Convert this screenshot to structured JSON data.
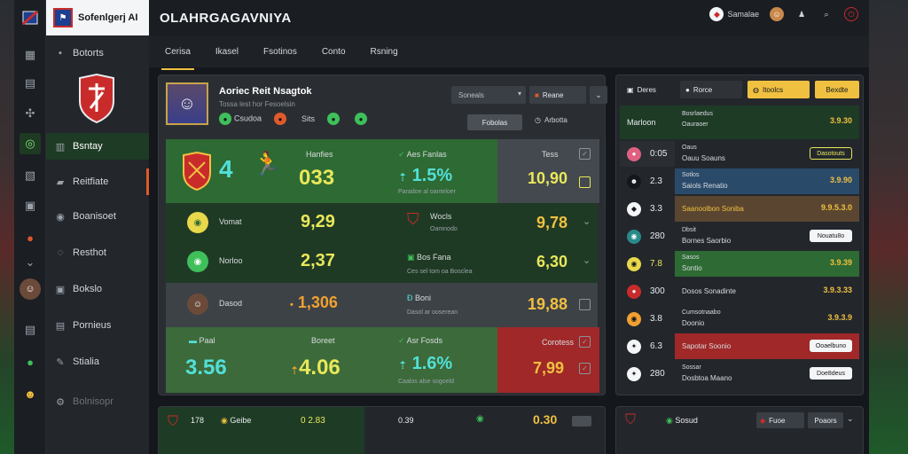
{
  "app": {
    "brand": "Sofenlgerj AI",
    "title": "OLAHRGAGAVNIYA"
  },
  "header": {
    "chip1": "Samalae",
    "chip2": "",
    "chip3": "",
    "chip4": ""
  },
  "tabs": [
    {
      "label": "Cerisa",
      "active": true
    },
    {
      "label": "Ikasel",
      "active": false
    },
    {
      "label": "Fsotinos",
      "active": false
    },
    {
      "label": "Conto",
      "active": false
    },
    {
      "label": "Rsning",
      "active": false
    }
  ],
  "sidebar": {
    "items": [
      {
        "label": "Botorts",
        "icon": "home-icon"
      },
      {
        "label": "Bsntay",
        "icon": "chart-icon",
        "active": true
      },
      {
        "label": "Reitfiate",
        "icon": "folder-icon",
        "marked": true
      },
      {
        "label": "Boanisoet",
        "icon": "shield-icon"
      },
      {
        "label": "Resthot",
        "icon": "globe-icon"
      },
      {
        "label": "Bokslo",
        "icon": "camera-icon"
      },
      {
        "label": "Pornieus",
        "icon": "doc-icon"
      },
      {
        "label": "Stialia",
        "icon": "tools-icon"
      },
      {
        "label": "Bolnisopr",
        "icon": "settings-icon",
        "dim": true
      }
    ]
  },
  "player": {
    "name": "Aoriec Reit Nsagtok",
    "sub": "Tossa lest hor  Fesoelsin",
    "stat1": "Csudoa",
    "stat2": "Sits",
    "select": "Soneals",
    "button": "Reane",
    "tag": "Fobolas",
    "tag2": "Arbotta"
  },
  "rows": {
    "r1": {
      "label_a": "Hanfies",
      "number": "4",
      "value_a": "033",
      "label_b": "Aes Fanlas",
      "value_b": "1.5%",
      "sub_b": "Paradoe al oanteloer",
      "label_c": "Tess",
      "value_c": "10,90"
    },
    "r2": {
      "label_a": "Vomat",
      "value_a": "9,29",
      "label_b": "Wocls",
      "sub_b": "Oamnodo",
      "value_c": "9,78"
    },
    "r3": {
      "label_a": "Norloo",
      "value_a": "2,37",
      "label_b": "Bos Fana",
      "sub_b": "Ces sel tom oa  Bosclea",
      "value_c": "6,30"
    },
    "r4": {
      "label_a": "Dasod",
      "value_a": "1,306",
      "label_b": "Boni",
      "sub_b": "Dasol ar ooserean",
      "value_c": "19,88"
    },
    "r5": {
      "label_a": "Paal",
      "label_a2": "Boreet",
      "value_a": "3.56",
      "value_a2": "4.06",
      "label_b": "Asr Fosds",
      "value_b": "1.6%",
      "sub_b": "Caalos alse sogoeld",
      "label_c": "Corotess",
      "value_c": "7,99"
    }
  },
  "rpanel": {
    "tab1": "Deres",
    "tab2": "Rorce",
    "tab3": "Itoolcs",
    "tab4": "Bexdte",
    "rows": [
      {
        "num": "",
        "left": "Marloon",
        "t1": "Bosrlaedus",
        "t2": "Oauraoer",
        "val": "3.9.30"
      },
      {
        "num": "0:05",
        "t1": "Oaus",
        "t2": "Oauu Soauns",
        "pill": "Dasotouts"
      },
      {
        "num": "2.3",
        "t1": "Sotlos",
        "t2": "Saiols Renatio",
        "val": "3.9.90"
      },
      {
        "num": "3.3",
        "t1": "",
        "t2": "Saanoolbon Soniba",
        "val": "9.9.5.3.0"
      },
      {
        "num": "280",
        "t1": "Dbsit",
        "t2": "Bornes Saorbio",
        "pill": "Nouatu8o"
      },
      {
        "num": "7.8",
        "t1": "Sasos",
        "t2": "Sontio",
        "val": "3.9.39"
      },
      {
        "num": "300",
        "t1": "",
        "t2": "Dosos Sonadinte",
        "val": "3.9.3.33"
      },
      {
        "num": "3.8",
        "t1": "Cumsotnaabo",
        "t2": "Doonio",
        "val": "3.9.3.9"
      },
      {
        "num": "6.3",
        "t1": "",
        "t2": "Sapotar Soonio",
        "pill": "Ooaelbuno"
      },
      {
        "num": "280",
        "t1": "Sossar",
        "t2": "Dosbtoa Maano",
        "pill": "Doe8deus"
      }
    ]
  },
  "bottom": {
    "a1": "178",
    "a2": "Geibe",
    "a3": "0 2.83",
    "a4": "0.39",
    "a5": "0.30",
    "b1": "Sosud",
    "b2": "Fuoe",
    "b3": "Poaors"
  },
  "colors": {
    "accent_yellow": "#f0c040",
    "green_dark": "#1e3b25",
    "red_cell": "#a02828"
  }
}
